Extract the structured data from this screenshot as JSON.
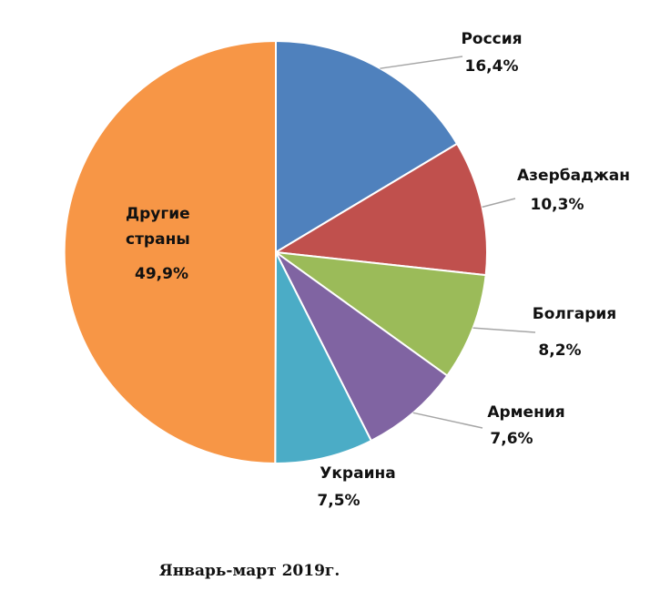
{
  "chart_data": {
    "type": "pie",
    "title": "",
    "caption": "Январь-март 2019г.",
    "start_angle_deg": 0,
    "direction": "clockwise",
    "slices": [
      {
        "name": "Россия",
        "value": 16.4,
        "label": "16,4%",
        "color": "#4f81bd"
      },
      {
        "name": "Азербаджан",
        "value": 10.3,
        "label": "10,3%",
        "color": "#c0504d"
      },
      {
        "name": "Болгария",
        "value": 8.2,
        "label": "8,2%",
        "color": "#9bbb59"
      },
      {
        "name": "Армения",
        "value": 7.6,
        "label": "7,6%",
        "color": "#8064a2"
      },
      {
        "name": "Украина",
        "value": 7.5,
        "label": "7,5%",
        "color": "#4bacc6"
      },
      {
        "name": "Другие страны",
        "value": 49.9,
        "label": "49,9%",
        "color": "#f79646"
      }
    ]
  }
}
